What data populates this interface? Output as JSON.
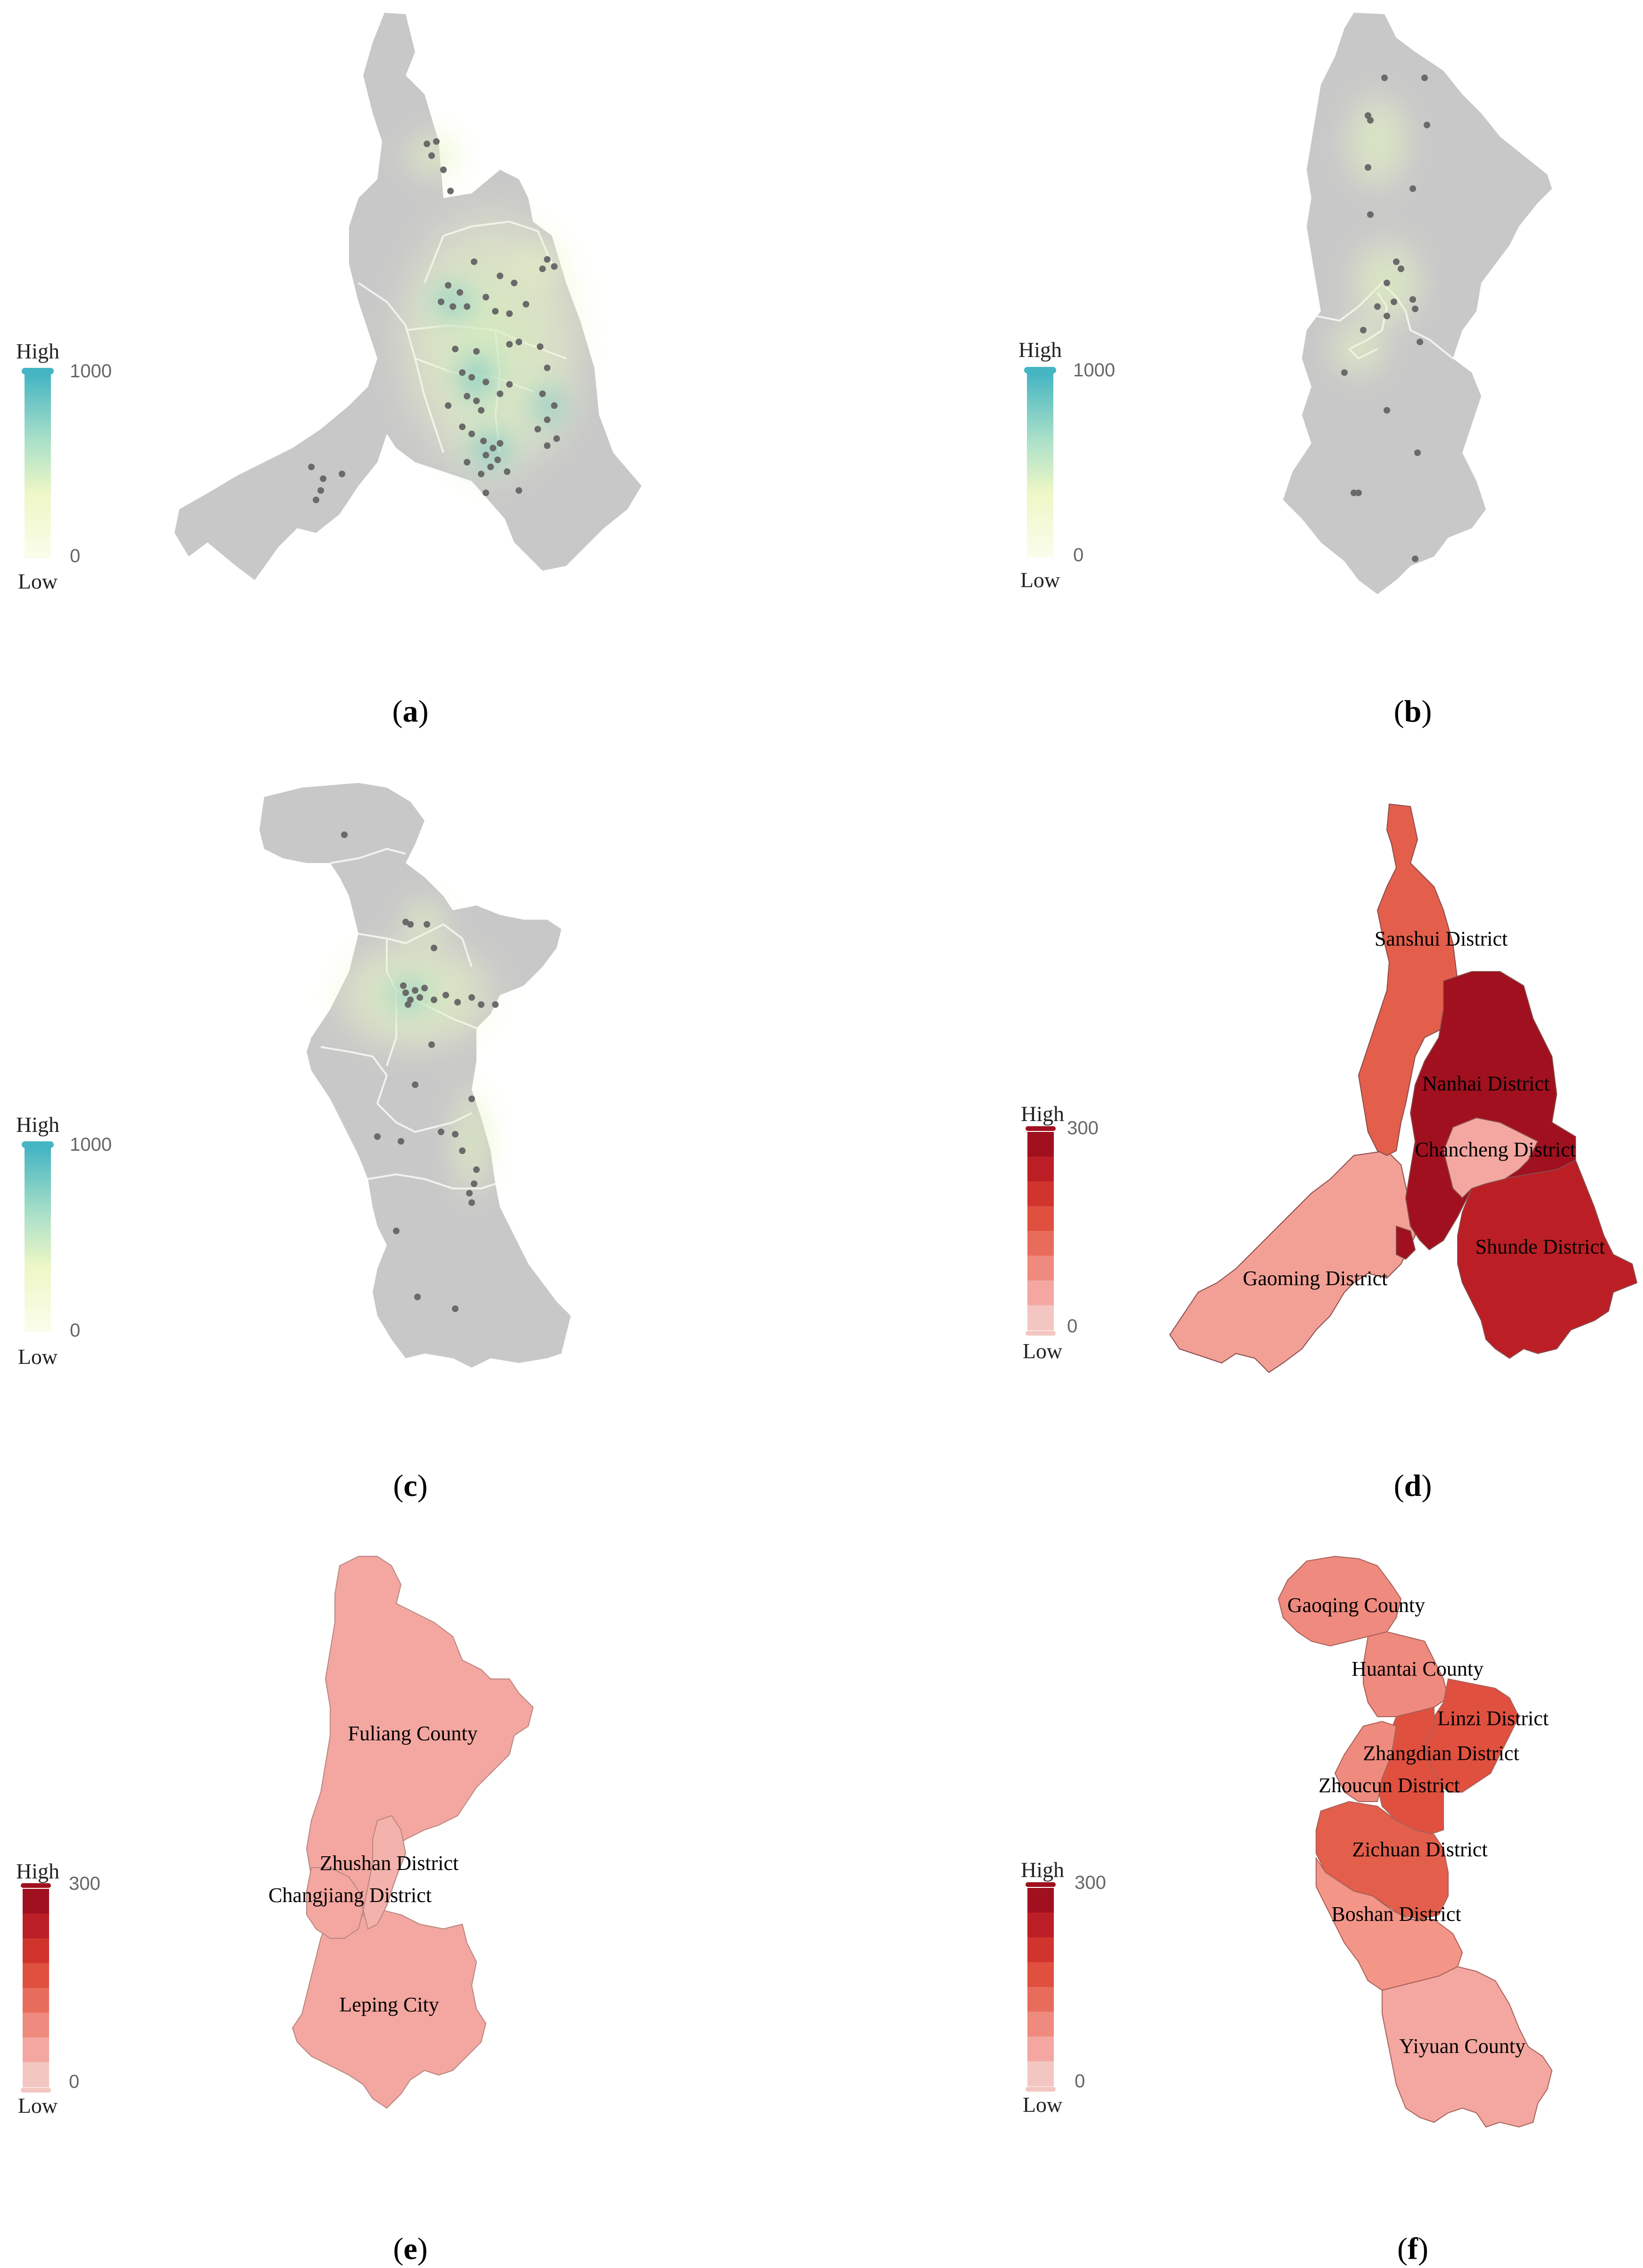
{
  "panels": [
    {
      "id": "a",
      "kind": "heatmap",
      "caption_open": "(",
      "caption_letter": "a",
      "caption_close": ")",
      "legend": {
        "high_word": "High",
        "low_word": "Low",
        "max_value": "1000",
        "min_value": "0"
      }
    },
    {
      "id": "b",
      "kind": "heatmap",
      "caption_open": "(",
      "caption_letter": "b",
      "caption_close": ")",
      "legend": {
        "high_word": "High",
        "low_word": "Low",
        "max_value": "1000",
        "min_value": "0"
      }
    },
    {
      "id": "c",
      "kind": "heatmap",
      "caption_open": "(",
      "caption_letter": "c",
      "caption_close": ")",
      "legend": {
        "high_word": "High",
        "low_word": "Low",
        "max_value": "1000",
        "min_value": "0"
      }
    },
    {
      "id": "d",
      "kind": "choropleth",
      "caption_open": "(",
      "caption_letter": "d",
      "caption_close": ")",
      "legend": {
        "high_word": "High",
        "low_word": "Low",
        "max_value": "300",
        "min_value": "0"
      },
      "districts": [
        "Sanshui District",
        "Nanhai District",
        "Chancheng District",
        "Shunde District",
        "Gaoming District"
      ]
    },
    {
      "id": "e",
      "kind": "choropleth",
      "caption_open": "(",
      "caption_letter": "e",
      "caption_close": ")",
      "legend": {
        "high_word": "High",
        "low_word": "Low",
        "max_value": "300",
        "min_value": "0"
      },
      "districts": [
        "Fuliang County",
        "Zhushan District",
        "Changjiang District",
        "Leping City"
      ]
    },
    {
      "id": "f",
      "kind": "choropleth",
      "caption_open": "(",
      "caption_letter": "f",
      "caption_close": ")",
      "legend": {
        "high_word": "High",
        "low_word": "Low",
        "max_value": "300",
        "min_value": "0"
      },
      "districts": [
        "Gaoqing County",
        "Huantai County",
        "Linzi District",
        "Zhangdian District",
        "Zhoucun District",
        "Zichuan District",
        "Boshan District",
        "Yiyuan County"
      ]
    }
  ],
  "colors": {
    "map_base": "#c8c8c8",
    "heat_high": "#49b9c6",
    "heat_mid": "#a8dfc8",
    "heat_low": "#f7fbd5",
    "point": "#6a6a6a",
    "choro_ramp": [
      "#f3c6c2",
      "#f3a7a0",
      "#ee8a7e",
      "#e86c5c",
      "#e0503f",
      "#d0342d",
      "#bb1f25",
      "#a0101f"
    ]
  }
}
